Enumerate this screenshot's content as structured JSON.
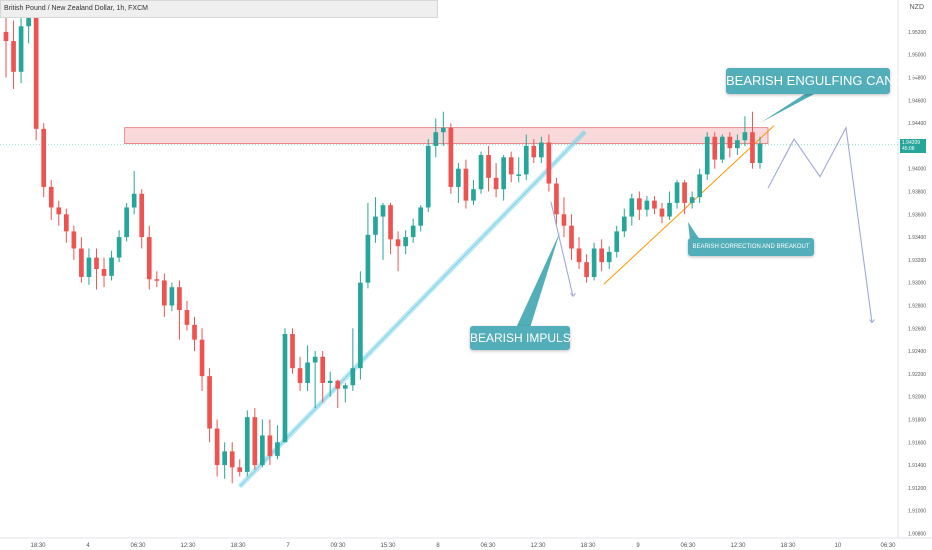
{
  "header": {
    "symbol_text": "British Pound / New Zealand Dollar, 1h, FXCM",
    "currency": "NZD"
  },
  "price_tag": {
    "price": "1.94209",
    "countdown": "45:08"
  },
  "colors": {
    "up": "#26a69a",
    "down": "#ef5350",
    "resistance_fill": "#f8c9cc",
    "resistance_stroke": "#e57373",
    "channel": "#7fd3e8",
    "trendline": "#ff9800",
    "projection": "#9fa8da",
    "callout": "#52aeb8"
  },
  "annotations": {
    "engulfing": "BEARISH ENGULFING CANDLE",
    "impulse": "BEARISH IMPULSE",
    "correction": "BEARISH CORRECTION AND BREAKOUT"
  },
  "chart_data": {
    "type": "candlestick",
    "y_ticks": [
      "1.95200",
      "1.95000",
      "1.94800",
      "1.94600",
      "1.94400",
      "1.94000",
      "1.93800",
      "1.93600",
      "1.93400",
      "1.93200",
      "1.93000",
      "1.92800",
      "1.92600",
      "1.92400",
      "1.92200",
      "1.92000",
      "1.91800",
      "1.91600",
      "1.91400",
      "1.91200",
      "1.91000",
      "1.90800"
    ],
    "x_ticks": [
      "18:30",
      "4",
      "06:30",
      "12:30",
      "18:30",
      "7",
      "09:30",
      "15:30",
      "8",
      "06:30",
      "12:30",
      "18:30",
      "9",
      "06:30",
      "12:30",
      "18:30",
      "10",
      "06:30"
    ],
    "ylim": [
      1.9076,
      1.9548
    ],
    "last_price": 1.94209,
    "resistance_zone": [
      1.9422,
      1.9436
    ],
    "candles": [
      [
        1.952,
        1.9512,
        1.9538,
        1.948
      ],
      [
        1.9512,
        1.9485,
        1.953,
        1.947
      ],
      [
        1.9485,
        1.9525,
        1.955,
        1.9475
      ],
      [
        1.9525,
        1.9548,
        1.955,
        1.951
      ],
      [
        1.9548,
        1.9435,
        1.955,
        1.9425
      ],
      [
        1.9435,
        1.9384,
        1.944,
        1.9375
      ],
      [
        1.9384,
        1.9366,
        1.939,
        1.9355
      ],
      [
        1.9366,
        1.936,
        1.9372,
        1.935
      ],
      [
        1.936,
        1.9345,
        1.9365,
        1.9335
      ],
      [
        1.9345,
        1.933,
        1.935,
        1.932
      ],
      [
        1.933,
        1.9305,
        1.934,
        1.93
      ],
      [
        1.9305,
        1.9322,
        1.933,
        1.9298
      ],
      [
        1.9322,
        1.9312,
        1.933,
        1.9294
      ],
      [
        1.9312,
        1.9306,
        1.9322,
        1.9296
      ],
      [
        1.9306,
        1.9322,
        1.9328,
        1.9302
      ],
      [
        1.9322,
        1.934,
        1.9346,
        1.9318
      ],
      [
        1.934,
        1.9366,
        1.937,
        1.9336
      ],
      [
        1.9366,
        1.9378,
        1.9398,
        1.936
      ],
      [
        1.9378,
        1.934,
        1.9382,
        1.933
      ],
      [
        1.934,
        1.9303,
        1.935,
        1.9294
      ],
      [
        1.9303,
        1.9302,
        1.931,
        1.9296
      ],
      [
        1.9302,
        1.928,
        1.9308,
        1.927
      ],
      [
        1.928,
        1.9296,
        1.93,
        1.9275
      ],
      [
        1.9296,
        1.9276,
        1.9302,
        1.925
      ],
      [
        1.9276,
        1.9263,
        1.9284,
        1.9258
      ],
      [
        1.9263,
        1.925,
        1.927,
        1.924
      ],
      [
        1.925,
        1.9218,
        1.926,
        1.9205
      ],
      [
        1.9218,
        1.9172,
        1.9225,
        1.916
      ],
      [
        1.9172,
        1.914,
        1.918,
        1.913
      ],
      [
        1.914,
        1.9152,
        1.916,
        1.9128
      ],
      [
        1.9152,
        1.9138,
        1.916,
        1.9124
      ],
      [
        1.9138,
        1.9134,
        1.9145,
        1.913
      ],
      [
        1.9134,
        1.9182,
        1.9188,
        1.913
      ],
      [
        1.9182,
        1.914,
        1.919,
        1.9136
      ],
      [
        1.914,
        1.9166,
        1.918,
        1.9138
      ],
      [
        1.9166,
        1.9148,
        1.918,
        1.914
      ],
      [
        1.9148,
        1.916,
        1.9175,
        1.9145
      ],
      [
        1.916,
        1.9255,
        1.926,
        1.9232
      ],
      [
        1.9255,
        1.9225,
        1.926,
        1.922
      ],
      [
        1.9225,
        1.9212,
        1.9235,
        1.9205
      ],
      [
        1.9212,
        1.923,
        1.9245,
        1.9205
      ],
      [
        1.923,
        1.9235,
        1.924,
        1.919
      ],
      [
        1.9235,
        1.9212,
        1.924,
        1.9195
      ],
      [
        1.9212,
        1.9214,
        1.9222,
        1.92
      ],
      [
        1.9214,
        1.9207,
        1.9215,
        1.919
      ],
      [
        1.9207,
        1.921,
        1.9212,
        1.9195
      ],
      [
        1.921,
        1.9225,
        1.926,
        1.9205
      ],
      [
        1.9225,
        1.93,
        1.931,
        1.9215
      ],
      [
        1.93,
        1.9342,
        1.937,
        1.9295
      ],
      [
        1.9342,
        1.9358,
        1.9375,
        1.9335
      ],
      [
        1.9358,
        1.9368,
        1.937,
        1.932
      ],
      [
        1.9368,
        1.9338,
        1.937,
        1.9325
      ],
      [
        1.9338,
        1.9332,
        1.9345,
        1.931
      ],
      [
        1.9332,
        1.934,
        1.9346,
        1.9325
      ],
      [
        1.934,
        1.935,
        1.9356,
        1.9335
      ],
      [
        1.935,
        1.9366,
        1.9368,
        1.9345
      ],
      [
        1.9366,
        1.942,
        1.9426,
        1.9362
      ],
      [
        1.942,
        1.9432,
        1.9444,
        1.941
      ],
      [
        1.9432,
        1.9436,
        1.945,
        1.942
      ],
      [
        1.9436,
        1.9384,
        1.944,
        1.9378
      ],
      [
        1.9384,
        1.94,
        1.9405,
        1.937
      ],
      [
        1.94,
        1.9372,
        1.9408,
        1.9365
      ],
      [
        1.9372,
        1.9382,
        1.939,
        1.9368
      ],
      [
        1.9382,
        1.9412,
        1.9415,
        1.9378
      ],
      [
        1.9412,
        1.9392,
        1.942,
        1.938
      ],
      [
        1.9392,
        1.9382,
        1.9405,
        1.9375
      ],
      [
        1.9382,
        1.941,
        1.9412,
        1.9372
      ],
      [
        1.941,
        1.9395,
        1.9415,
        1.9388
      ],
      [
        1.9395,
        1.9395,
        1.941,
        1.9388
      ],
      [
        1.9395,
        1.942,
        1.943,
        1.939
      ],
      [
        1.942,
        1.941,
        1.9426,
        1.9405
      ],
      [
        1.941,
        1.9423,
        1.9428,
        1.9405
      ],
      [
        1.9423,
        1.9387,
        1.943,
        1.938
      ],
      [
        1.9387,
        1.936,
        1.9392,
        1.935
      ],
      [
        1.936,
        1.935,
        1.9375,
        1.934
      ],
      [
        1.935,
        1.933,
        1.936,
        1.932
      ],
      [
        1.933,
        1.9318,
        1.934,
        1.9312
      ],
      [
        1.9318,
        1.9305,
        1.9325,
        1.93
      ],
      [
        1.9305,
        1.933,
        1.9335,
        1.9302
      ],
      [
        1.933,
        1.9318,
        1.9338,
        1.931
      ],
      [
        1.9318,
        1.9327,
        1.9332,
        1.9312
      ],
      [
        1.9327,
        1.9345,
        1.935,
        1.9322
      ],
      [
        1.9345,
        1.9358,
        1.9365,
        1.934
      ],
      [
        1.9358,
        1.9374,
        1.9378,
        1.935
      ],
      [
        1.9374,
        1.9364,
        1.938,
        1.9355
      ],
      [
        1.9364,
        1.9372,
        1.9376,
        1.9358
      ],
      [
        1.9372,
        1.9365,
        1.9376,
        1.936
      ],
      [
        1.9365,
        1.9358,
        1.937,
        1.9352
      ],
      [
        1.9358,
        1.937,
        1.938,
        1.9355
      ],
      [
        1.937,
        1.9388,
        1.939,
        1.9365
      ],
      [
        1.9388,
        1.937,
        1.939,
        1.936
      ],
      [
        1.937,
        1.9375,
        1.938,
        1.9365
      ],
      [
        1.9375,
        1.9395,
        1.94,
        1.937
      ],
      [
        1.9395,
        1.9428,
        1.9432,
        1.939
      ],
      [
        1.9428,
        1.9408,
        1.9432,
        1.94
      ],
      [
        1.9408,
        1.9428,
        1.943,
        1.9405
      ],
      [
        1.9428,
        1.9418,
        1.9432,
        1.941
      ],
      [
        1.9418,
        1.9425,
        1.943,
        1.9412
      ],
      [
        1.9425,
        1.9432,
        1.9446,
        1.942
      ],
      [
        1.9432,
        1.9405,
        1.945,
        1.94
      ],
      [
        1.9405,
        1.9422,
        1.9428,
        1.94
      ]
    ],
    "projection_paths": [
      [
        [
          1.9371,
          1.9288
        ]
      ],
      [
        [
          1.9383,
          1.9426,
          1.9393,
          1.9436,
          1.9265
        ]
      ]
    ]
  }
}
